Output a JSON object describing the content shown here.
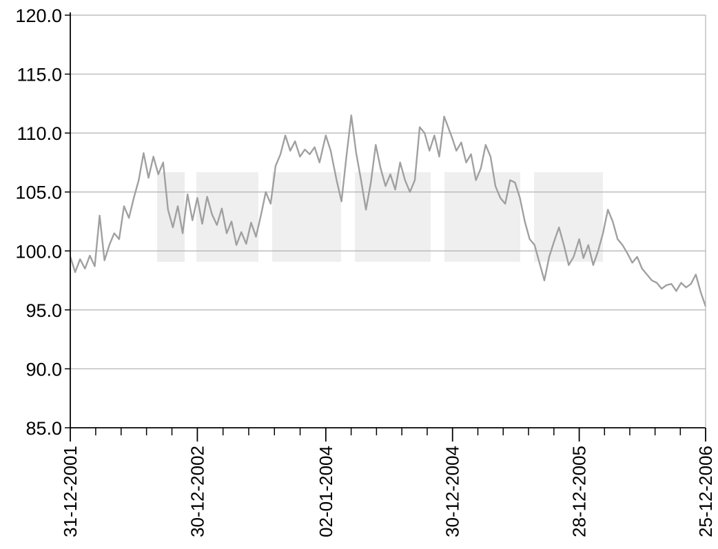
{
  "chart_data": {
    "type": "line",
    "title": "",
    "xlabel": "",
    "ylabel": "",
    "grid": true,
    "legend": "none",
    "ylim": [
      85.0,
      120.0
    ],
    "yticks": [
      "85.0",
      "90.0",
      "95.0",
      "100.0",
      "105.0",
      "110.0",
      "115.0",
      "120.0"
    ],
    "xlim": [
      "31-12-2001",
      "25-12-2006"
    ],
    "xticks": [
      "31-12-2001",
      "30-12-2002",
      "02-01-2004",
      "30-12-2004",
      "28-12-2005",
      "25-12-2006"
    ],
    "colors": {
      "line": "#a0a0a0",
      "grid": "#b0b0b0",
      "axis": "#000000",
      "watermark": "#ececec"
    },
    "series": [
      {
        "x": [
          "2001-12-31",
          "2002-01-14",
          "2002-01-28",
          "2002-02-11",
          "2002-02-25",
          "2002-03-11",
          "2002-03-25",
          "2002-04-08",
          "2002-04-22",
          "2002-05-06",
          "2002-05-20",
          "2002-06-03",
          "2002-06-17",
          "2002-07-01",
          "2002-07-15",
          "2002-07-29",
          "2002-08-12",
          "2002-08-26",
          "2002-09-09",
          "2002-09-23",
          "2002-10-07",
          "2002-10-21",
          "2002-11-04",
          "2002-11-18",
          "2002-12-02",
          "2002-12-16",
          "2002-12-30",
          "2003-01-13",
          "2003-01-27",
          "2003-02-10",
          "2003-02-24",
          "2003-03-10",
          "2003-03-24",
          "2003-04-07",
          "2003-04-21",
          "2003-05-05",
          "2003-05-19",
          "2003-06-02",
          "2003-06-16",
          "2003-06-30",
          "2003-07-14",
          "2003-07-28",
          "2003-08-11",
          "2003-08-25",
          "2003-09-08",
          "2003-09-22",
          "2003-10-06",
          "2003-10-20",
          "2003-11-03",
          "2003-11-17",
          "2003-12-01",
          "2003-12-15",
          "2004-01-02",
          "2004-01-16",
          "2004-02-02",
          "2004-02-16",
          "2004-03-01",
          "2004-03-15",
          "2004-03-29",
          "2004-04-12",
          "2004-04-26",
          "2004-05-10",
          "2004-05-24",
          "2004-06-07",
          "2004-06-21",
          "2004-07-05",
          "2004-07-19",
          "2004-08-02",
          "2004-08-16",
          "2004-08-30",
          "2004-09-13",
          "2004-09-27",
          "2004-10-11",
          "2004-10-25",
          "2004-11-08",
          "2004-11-22",
          "2004-12-06",
          "2004-12-30",
          "2005-01-10",
          "2005-01-24",
          "2005-02-07",
          "2005-02-21",
          "2005-03-07",
          "2005-03-21",
          "2005-04-04",
          "2005-04-18",
          "2005-05-02",
          "2005-05-16",
          "2005-05-30",
          "2005-06-13",
          "2005-06-27",
          "2005-07-11",
          "2005-07-25",
          "2005-08-08",
          "2005-08-22",
          "2005-09-05",
          "2005-09-19",
          "2005-10-03",
          "2005-10-17",
          "2005-10-31",
          "2005-11-14",
          "2005-11-28",
          "2005-12-12",
          "2005-12-28",
          "2006-01-09",
          "2006-01-23",
          "2006-02-06",
          "2006-02-20",
          "2006-03-06",
          "2006-03-20",
          "2006-04-03",
          "2006-04-17",
          "2006-05-01",
          "2006-05-15",
          "2006-05-29",
          "2006-06-12",
          "2006-06-26",
          "2006-07-10",
          "2006-07-24",
          "2006-08-07",
          "2006-08-21",
          "2006-09-04",
          "2006-09-18",
          "2006-10-02",
          "2006-10-16",
          "2006-10-30",
          "2006-11-13",
          "2006-11-27",
          "2006-12-11",
          "2006-12-25"
        ],
        "values": [
          99.5,
          98.2,
          99.3,
          98.5,
          99.6,
          98.7,
          103.0,
          99.2,
          100.5,
          101.5,
          101.0,
          103.8,
          102.8,
          104.5,
          106.0,
          108.3,
          106.2,
          108.0,
          106.5,
          107.5,
          103.5,
          102.0,
          103.8,
          101.5,
          104.8,
          102.6,
          104.5,
          102.3,
          104.6,
          103.1,
          102.2,
          103.6,
          101.5,
          102.5,
          100.5,
          101.6,
          100.6,
          102.4,
          101.2,
          103.0,
          105.0,
          104.0,
          107.2,
          108.2,
          109.8,
          108.5,
          109.3,
          108.0,
          108.6,
          108.2,
          108.8,
          107.5,
          109.8,
          108.5,
          106.0,
          104.2,
          108.0,
          111.5,
          108.3,
          106.0,
          103.5,
          105.8,
          109.0,
          107.0,
          105.5,
          106.5,
          105.2,
          107.5,
          106.0,
          105.0,
          106.0,
          110.5,
          110.0,
          108.5,
          109.8,
          108.0,
          111.4,
          109.5,
          108.5,
          109.2,
          107.5,
          108.2,
          106.0,
          107.0,
          109.0,
          108.0,
          105.5,
          104.5,
          104.0,
          106.0,
          105.8,
          104.5,
          102.5,
          101.0,
          100.5,
          99.0,
          97.5,
          99.5,
          100.8,
          102.0,
          100.5,
          98.8,
          99.5,
          101.0,
          99.4,
          100.5,
          98.8,
          100.0,
          101.5,
          103.5,
          102.5,
          101.0,
          100.5,
          99.8,
          99.0,
          99.5,
          98.5,
          98.0,
          97.5,
          97.3,
          96.8,
          97.1,
          97.2,
          96.6,
          97.3,
          96.9,
          97.2,
          98.0,
          96.5,
          95.3
        ]
      }
    ]
  }
}
